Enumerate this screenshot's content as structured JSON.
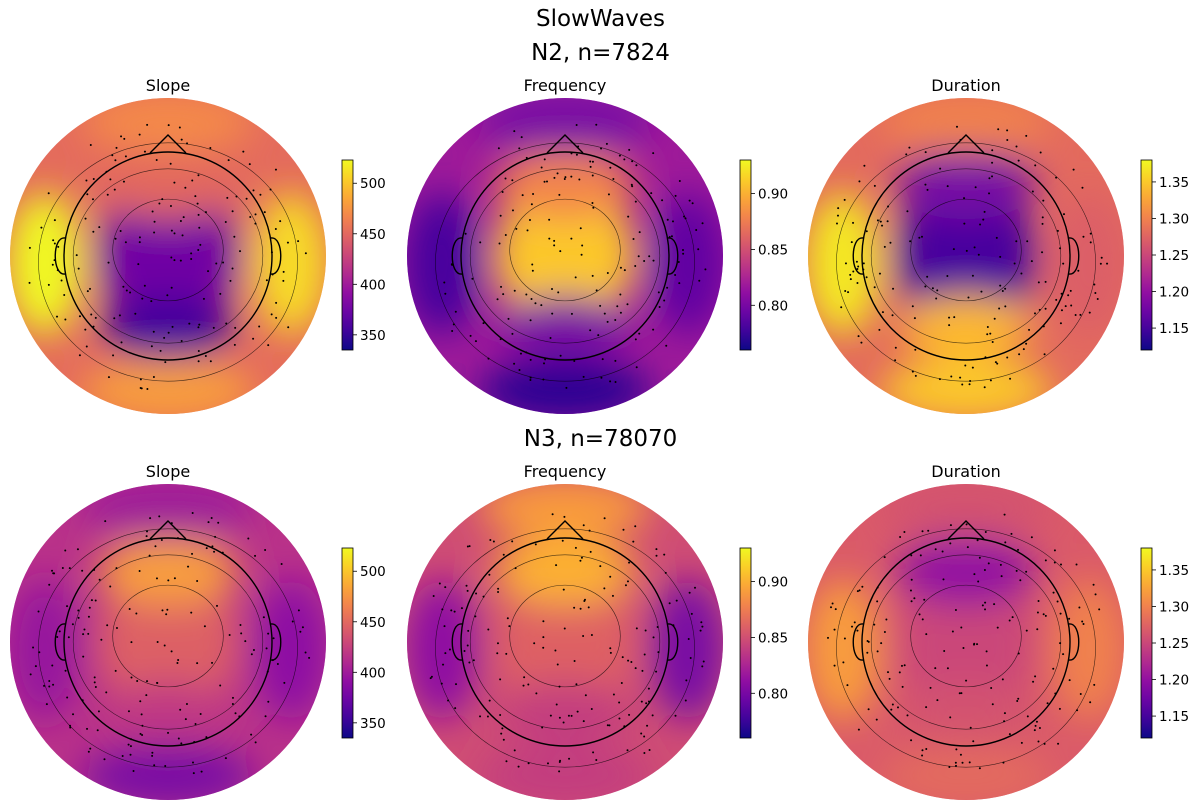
{
  "figure": {
    "title": "SlowWaves",
    "rows": [
      {
        "subtitle": "N2, n=7824"
      },
      {
        "subtitle": "N3, n=78070"
      }
    ]
  },
  "chart_data": [
    {
      "type": "heatmap",
      "row": "N2, n=7824",
      "title": "Slope",
      "colormap": "plasma",
      "clim": [
        335,
        523
      ],
      "colorbar_ticks": [
        350,
        400,
        450,
        500
      ],
      "colorbar_labels": [
        "350",
        "400",
        "450",
        "500"
      ],
      "regions": {
        "center": 375,
        "frontal": 450,
        "occipital": 355,
        "left": 523,
        "right": 510,
        "outer_front": 470,
        "outer_back": 480
      }
    },
    {
      "type": "heatmap",
      "row": "N2, n=7824",
      "title": "Frequency",
      "colormap": "plasma",
      "clim": [
        0.76,
        0.93
      ],
      "colorbar_ticks": [
        0.8,
        0.85,
        0.9
      ],
      "colorbar_labels": [
        "0.80",
        "0.85",
        "0.90"
      ],
      "regions": {
        "center": 0.91,
        "frontal": 0.88,
        "occipital": 0.8,
        "left": 0.78,
        "right": 0.79,
        "outer_front": 0.8,
        "outer_back": 0.77
      }
    },
    {
      "type": "heatmap",
      "row": "N2, n=7824",
      "title": "Duration",
      "colormap": "plasma",
      "clim": [
        1.12,
        1.38
      ],
      "colorbar_ticks": [
        1.15,
        1.2,
        1.25,
        1.3,
        1.35
      ],
      "colorbar_labels": [
        "1.15",
        "1.20",
        "1.25",
        "1.30",
        "1.35"
      ],
      "regions": {
        "center": 1.15,
        "frontal": 1.18,
        "occipital": 1.34,
        "left": 1.37,
        "right": 1.27,
        "outer_front": 1.3,
        "outer_back": 1.35
      }
    },
    {
      "type": "heatmap",
      "row": "N3, n=78070",
      "title": "Slope",
      "colormap": "plasma",
      "clim": [
        335,
        523
      ],
      "colorbar_ticks": [
        350,
        400,
        450,
        500
      ],
      "colorbar_labels": [
        "350",
        "400",
        "450",
        "500"
      ],
      "regions": {
        "center": 445,
        "frontal": 480,
        "occipital": 420,
        "left": 395,
        "right": 390,
        "outer_front": 400,
        "outer_back": 380
      }
    },
    {
      "type": "heatmap",
      "row": "N3, n=78070",
      "title": "Frequency",
      "colormap": "plasma",
      "clim": [
        0.76,
        0.93
      ],
      "colorbar_ticks": [
        0.8,
        0.85,
        0.9
      ],
      "colorbar_labels": [
        "0.80",
        "0.85",
        "0.90"
      ],
      "regions": {
        "center": 0.86,
        "frontal": 0.9,
        "occipital": 0.84,
        "left": 0.81,
        "right": 0.8,
        "outer_front": 0.89,
        "outer_back": 0.84
      }
    },
    {
      "type": "heatmap",
      "row": "N3, n=78070",
      "title": "Duration",
      "colormap": "plasma",
      "clim": [
        1.12,
        1.38
      ],
      "colorbar_ticks": [
        1.15,
        1.2,
        1.25,
        1.3,
        1.35
      ],
      "colorbar_labels": [
        "1.15",
        "1.20",
        "1.25",
        "1.30",
        "1.35"
      ],
      "regions": {
        "center": 1.25,
        "frontal": 1.2,
        "occipital": 1.26,
        "left": 1.32,
        "right": 1.3,
        "outer_front": 1.26,
        "outer_back": 1.28
      }
    }
  ]
}
